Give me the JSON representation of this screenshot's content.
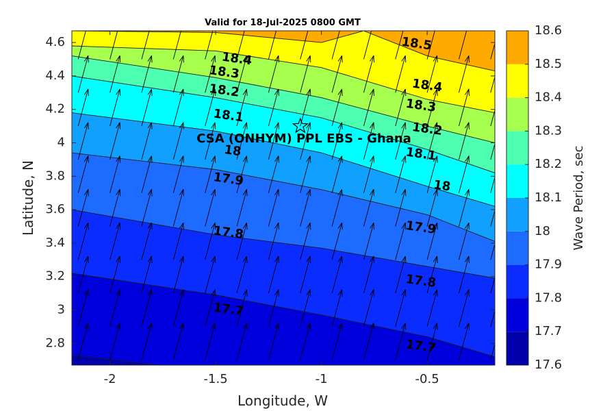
{
  "title": "Valid for 18-Jul-2025 0800 GMT",
  "xlabel": "Longitude, W",
  "ylabel": "Latitude, N",
  "colorbar_label": "Wave Period, sec",
  "site_label": "CSA (ONHYM) PPL EBS  - Ghana",
  "x_ticks": [
    "-2",
    "-1.5",
    "-1",
    "-0.5"
  ],
  "y_ticks": [
    "2.8",
    "3",
    "3.2",
    "3.4",
    "3.6",
    "3.8",
    "4",
    "4.2",
    "4.4",
    "4.6"
  ],
  "colorbar_ticks": [
    "17.6",
    "17.7",
    "17.8",
    "17.9",
    "18",
    "18.1",
    "18.2",
    "18.3",
    "18.4",
    "18.5",
    "18.6"
  ],
  "chart_data": {
    "type": "contour",
    "title": "Valid for 18-Jul-2025 0800 GMT",
    "xlabel": "Longitude, W",
    "ylabel": "Latitude, N",
    "xlim": [
      -2.18,
      -0.18
    ],
    "ylim": [
      2.67,
      4.67
    ],
    "grid": false,
    "colorbar": {
      "label": "Wave Period, sec",
      "range": [
        17.6,
        18.6
      ],
      "levels": [
        17.6,
        17.7,
        17.8,
        17.9,
        18.0,
        18.1,
        18.2,
        18.3,
        18.4,
        18.5,
        18.6
      ],
      "colors": [
        "#0000aa",
        "#0000dd",
        "#0a2cff",
        "#1e6cff",
        "#12a0ff",
        "#00ffff",
        "#4dffb0",
        "#a6ff4d",
        "#ffff00",
        "#ffaa00",
        "#ff5500"
      ]
    },
    "contours": [
      {
        "value": 17.7,
        "points": [
          [
            -2.18,
            2.73
          ],
          [
            -1.5,
            2.63
          ],
          [
            -1.0,
            2.61
          ],
          [
            -0.5,
            2.62
          ],
          [
            -0.18,
            2.61
          ]
        ]
      },
      {
        "value": 17.8,
        "points": [
          [
            -2.18,
            3.22
          ],
          [
            -1.5,
            3.09
          ],
          [
            -1.0,
            2.97
          ],
          [
            -0.5,
            2.84
          ],
          [
            -0.18,
            2.72
          ]
        ]
      },
      {
        "value": 17.9,
        "points": [
          [
            -2.18,
            3.6
          ],
          [
            -1.5,
            3.45
          ],
          [
            -1.0,
            3.37
          ],
          [
            -0.5,
            3.26
          ],
          [
            -0.18,
            3.19
          ]
        ]
      },
      {
        "value": 18.0,
        "points": [
          [
            -2.18,
            3.94
          ],
          [
            -1.5,
            3.84
          ],
          [
            -1.0,
            3.72
          ],
          [
            -0.5,
            3.57
          ],
          [
            -0.18,
            3.41
          ]
        ]
      },
      {
        "value": 18.1,
        "points": [
          [
            -2.18,
            4.18
          ],
          [
            -1.5,
            4.07
          ],
          [
            -1.0,
            3.94
          ],
          [
            -0.5,
            3.74
          ],
          [
            -0.18,
            3.62
          ]
        ]
      },
      {
        "value": 18.2,
        "points": [
          [
            -2.18,
            4.4
          ],
          [
            -1.5,
            4.27
          ],
          [
            -1.0,
            4.15
          ],
          [
            -0.5,
            3.96
          ],
          [
            -0.18,
            3.82
          ]
        ]
      },
      {
        "value": 18.3,
        "points": [
          [
            -2.18,
            4.52
          ],
          [
            -1.5,
            4.39
          ],
          [
            -1.0,
            4.27
          ],
          [
            -0.5,
            4.1
          ],
          [
            -0.18,
            4.0
          ]
        ]
      },
      {
        "value": 18.4,
        "points": [
          [
            -2.18,
            4.58
          ],
          [
            -1.5,
            4.55
          ],
          [
            -1.0,
            4.45
          ],
          [
            -0.5,
            4.26
          ],
          [
            -0.18,
            4.18
          ]
        ]
      },
      {
        "value": 18.5,
        "points": [
          [
            -2.18,
            4.67
          ],
          [
            -1.5,
            4.66
          ],
          [
            -1.0,
            4.6
          ],
          [
            -0.8,
            4.67
          ],
          [
            -0.5,
            4.52
          ],
          [
            -0.18,
            4.43
          ]
        ]
      }
    ],
    "contour_labels": [
      {
        "text": "18.4",
        "lon": -1.4,
        "lat": 4.5
      },
      {
        "text": "18.3",
        "lon": -1.46,
        "lat": 4.42
      },
      {
        "text": "18.2",
        "lon": -1.46,
        "lat": 4.31
      },
      {
        "text": "18.1",
        "lon": -1.44,
        "lat": 4.16
      },
      {
        "text": "18",
        "lon": -1.42,
        "lat": 3.95
      },
      {
        "text": "17.9",
        "lon": -1.44,
        "lat": 3.78
      },
      {
        "text": "17.8",
        "lon": -1.44,
        "lat": 3.46
      },
      {
        "text": "17.7",
        "lon": -1.44,
        "lat": 3.0
      },
      {
        "text": "18.5",
        "lon": -0.55,
        "lat": 4.59
      },
      {
        "text": "18.4",
        "lon": -0.5,
        "lat": 4.34
      },
      {
        "text": "18.3",
        "lon": -0.53,
        "lat": 4.22
      },
      {
        "text": "18.2",
        "lon": -0.5,
        "lat": 4.08
      },
      {
        "text": "18.1",
        "lon": -0.53,
        "lat": 3.93
      },
      {
        "text": "18",
        "lon": -0.43,
        "lat": 3.74
      },
      {
        "text": "17.9",
        "lon": -0.53,
        "lat": 3.49
      },
      {
        "text": "17.8",
        "lon": -0.53,
        "lat": 3.17
      },
      {
        "text": "17.7",
        "lon": -0.53,
        "lat": 2.78
      }
    ],
    "site": {
      "name": "CSA (ONHYM) PPL EBS  - Ghana",
      "lon": -1.1,
      "lat": 4.1,
      "marker": "star"
    },
    "vectors": {
      "lon_grid": [
        -2.15,
        -2.0,
        -1.85,
        -1.7,
        -1.55,
        -1.4,
        -1.25,
        -1.1,
        -0.95,
        -0.8,
        -0.65,
        -0.5,
        -0.35,
        -0.2
      ],
      "lat_grid": [
        2.7,
        2.9,
        3.1,
        3.3,
        3.5,
        3.7,
        3.9,
        4.1,
        4.3,
        4.5
      ],
      "direction_deg_from_north": 15,
      "color": "#000000"
    }
  }
}
